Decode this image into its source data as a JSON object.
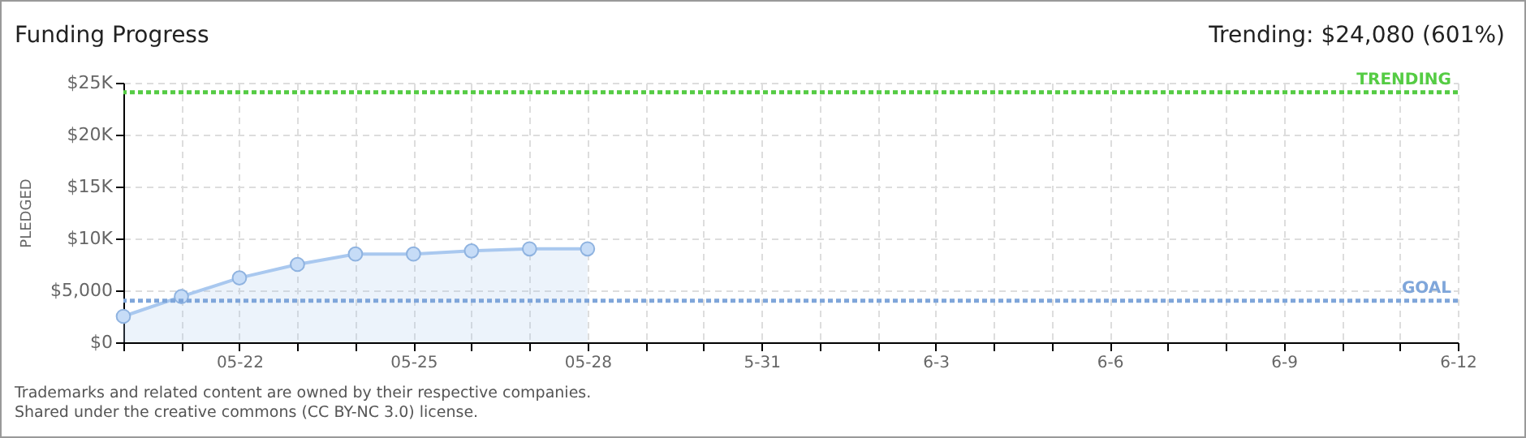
{
  "chart_data": {
    "type": "area",
    "title": "Funding Progress",
    "subtitle": "Trending: $24,080 (601%)",
    "ylabel": "PLEDGED",
    "x": [
      "--05-20",
      "--05-21",
      "--05-22",
      "--05-23",
      "--05-24",
      "--05-25",
      "--05-26",
      "--05-27",
      "--05-28"
    ],
    "series": [
      {
        "color": "#a9c8ef",
        "values": [
          2500,
          4400,
          6200,
          7500,
          8500,
          8500,
          8800,
          9000,
          9000
        ]
      }
    ],
    "marker": "circle",
    "grid": true,
    "xlim": [
      "--05-20",
      "--06-12"
    ],
    "xticks": [
      {
        "value": "--05-20",
        "label": null
      },
      {
        "value": "--05-21",
        "label": null
      },
      {
        "value": "--05-22",
        "label": "05-22"
      },
      {
        "value": "--05-23",
        "label": null
      },
      {
        "value": "--05-24",
        "label": null
      },
      {
        "value": "--05-25",
        "label": "05-25"
      },
      {
        "value": "--05-26",
        "label": null
      },
      {
        "value": "--05-27",
        "label": null
      },
      {
        "value": "--05-28",
        "label": "05-28"
      },
      {
        "value": "--05-29",
        "label": null
      },
      {
        "value": "--05-30",
        "label": null
      },
      {
        "value": "--05-31",
        "label": "5-31"
      },
      {
        "value": "--06-01",
        "label": null
      },
      {
        "value": "--06-02",
        "label": null
      },
      {
        "value": "--06-03",
        "label": "6-3"
      },
      {
        "value": "--06-04",
        "label": null
      },
      {
        "value": "--06-05",
        "label": null
      },
      {
        "value": "--06-06",
        "label": "6-6"
      },
      {
        "value": "--06-07",
        "label": null
      },
      {
        "value": "--06-08",
        "label": null
      },
      {
        "value": "--06-09",
        "label": "6-9"
      },
      {
        "value": "--06-10",
        "label": null
      },
      {
        "value": "--06-11",
        "label": null
      },
      {
        "value": "--06-12",
        "label": "6-12"
      }
    ],
    "ylim": [
      0,
      25000
    ],
    "yticks": [
      {
        "value": 0,
        "label": "$0"
      },
      {
        "value": 5000,
        "label": "$5,000"
      },
      {
        "value": 10000,
        "label": "$10K"
      },
      {
        "value": 15000,
        "label": "$15K"
      },
      {
        "value": 20000,
        "label": "$20K"
      },
      {
        "value": 25000,
        "label": "$25K"
      }
    ],
    "ref_lines": [
      {
        "axis": "y",
        "value": 24080,
        "label": "TRENDING",
        "color": "#55cc44",
        "line_style": "dotted"
      },
      {
        "axis": "y",
        "value": 4000,
        "label": "GOAL",
        "color": "#7fa6da",
        "line_style": "dotted"
      }
    ],
    "annotations": [
      "Trademarks and related content are owned by their respective companies.",
      "Shared under the creative commons (CC BY-NC 3.0) license."
    ]
  }
}
